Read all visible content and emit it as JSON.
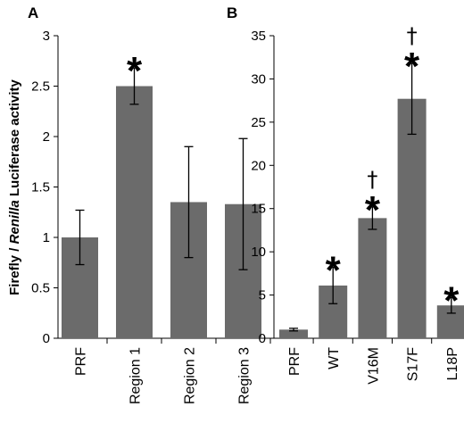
{
  "ylabel": {
    "part1": "Firefly / ",
    "part2": "Renilla",
    "part3": " Luciferase activity"
  },
  "chart_data": [
    {
      "type": "bar",
      "panel": "A",
      "categories": [
        "PRF",
        "Region 1",
        "Region 2",
        "Region 3"
      ],
      "values": [
        1.0,
        2.5,
        1.35,
        1.33
      ],
      "errors": [
        0.27,
        0.18,
        0.55,
        0.65
      ],
      "significance": [
        "",
        "*",
        "",
        ""
      ],
      "dagger": [
        "",
        "",
        "",
        ""
      ],
      "ylim": [
        0,
        3
      ],
      "yticks": [
        0,
        0.5,
        1,
        1.5,
        2,
        2.5,
        3
      ],
      "ytick_labels": [
        "0",
        "0.5",
        "1",
        "1.5",
        "2",
        "2.5",
        "3"
      ],
      "grid": false
    },
    {
      "type": "bar",
      "panel": "B",
      "categories": [
        "PRF",
        "WT",
        "V16M",
        "S17F",
        "L18P"
      ],
      "values": [
        1.0,
        6.1,
        13.9,
        27.7,
        3.8
      ],
      "errors": [
        0.15,
        2.1,
        1.3,
        4.1,
        0.9
      ],
      "significance": [
        "",
        "*",
        "*",
        "*",
        "*"
      ],
      "dagger": [
        "",
        "",
        "†",
        "†",
        ""
      ],
      "ylim": [
        0,
        35
      ],
      "yticks": [
        0,
        5,
        10,
        15,
        20,
        25,
        30,
        35
      ],
      "ytick_labels": [
        "0",
        "5",
        "10",
        "15",
        "20",
        "25",
        "30",
        "35"
      ],
      "grid": false
    }
  ]
}
